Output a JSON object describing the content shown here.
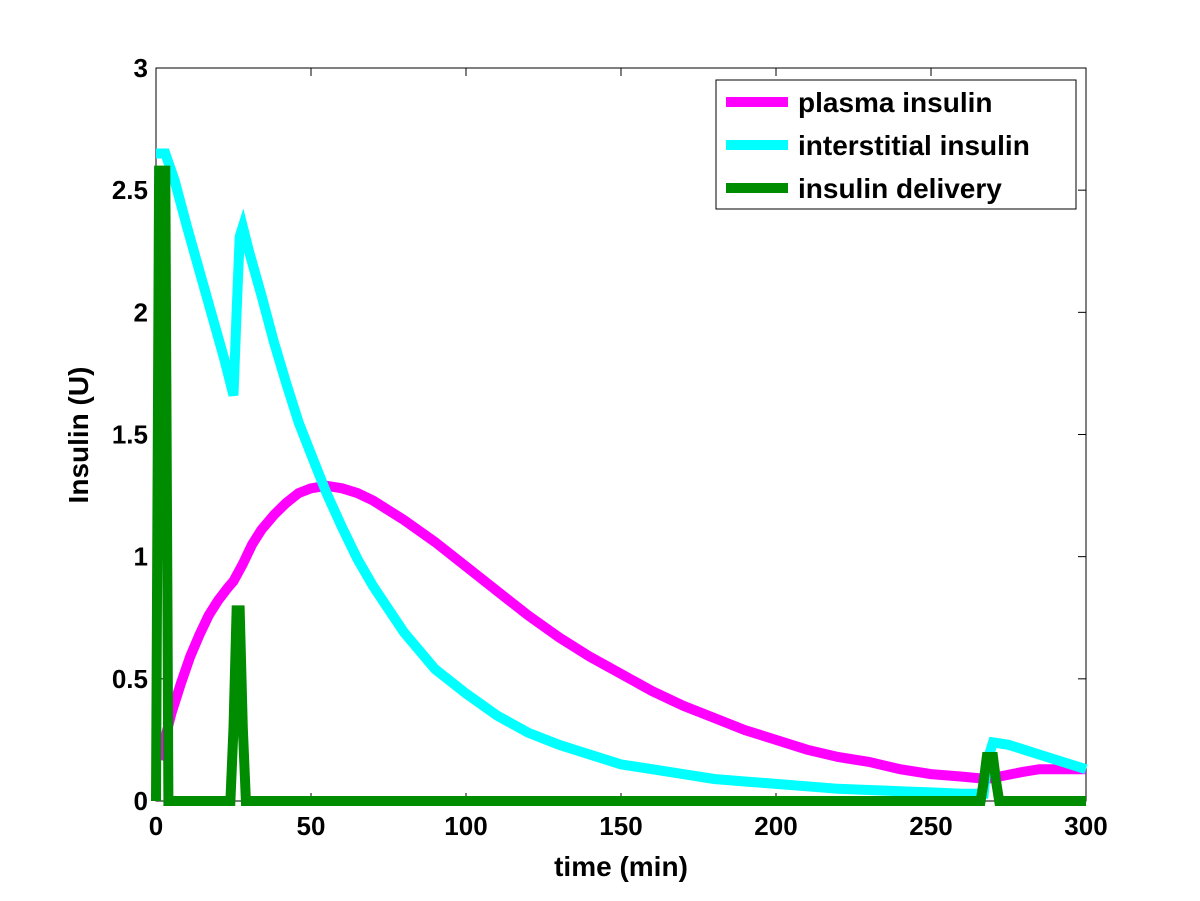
{
  "chart_data": {
    "type": "line",
    "title": "",
    "xlabel": "time (min)",
    "ylabel": "Insulin (U)",
    "xlim": [
      0,
      300
    ],
    "ylim": [
      0,
      3
    ],
    "x_ticks": [
      "0",
      "50",
      "100",
      "150",
      "200",
      "250",
      "300"
    ],
    "y_ticks": [
      "0",
      "0.5",
      "1",
      "1.5",
      "2",
      "2.5",
      "3"
    ],
    "grid": false,
    "legend_position": "top-right",
    "series": [
      {
        "name": "plasma insulin",
        "color": "#ff00ff",
        "x": [
          1,
          3,
          5,
          8,
          11,
          14,
          17,
          20,
          23,
          25,
          28,
          31,
          34,
          38,
          42,
          46,
          50,
          55,
          60,
          65,
          70,
          80,
          90,
          100,
          110,
          120,
          130,
          140,
          150,
          160,
          170,
          180,
          190,
          200,
          210,
          220,
          230,
          240,
          250,
          260,
          268,
          272,
          276,
          280,
          285,
          290,
          295,
          300
        ],
        "y": [
          0.17,
          0.26,
          0.36,
          0.48,
          0.59,
          0.68,
          0.76,
          0.82,
          0.87,
          0.9,
          0.97,
          1.05,
          1.11,
          1.17,
          1.22,
          1.26,
          1.28,
          1.29,
          1.28,
          1.26,
          1.23,
          1.15,
          1.06,
          0.96,
          0.86,
          0.76,
          0.67,
          0.59,
          0.52,
          0.45,
          0.39,
          0.34,
          0.29,
          0.25,
          0.21,
          0.18,
          0.16,
          0.13,
          0.11,
          0.1,
          0.09,
          0.1,
          0.11,
          0.12,
          0.13,
          0.13,
          0.13,
          0.13
        ]
      },
      {
        "name": "interstitial insulin",
        "color": "#00ffff",
        "x": [
          0,
          3,
          6,
          10,
          14,
          18,
          22,
          25,
          26,
          27,
          28,
          30,
          34,
          38,
          42,
          46,
          50,
          55,
          60,
          65,
          70,
          80,
          90,
          100,
          110,
          120,
          130,
          140,
          150,
          160,
          170,
          180,
          190,
          200,
          210,
          220,
          230,
          240,
          250,
          260,
          267,
          268,
          270,
          275,
          280,
          285,
          290,
          295,
          300
        ],
        "y": [
          2.65,
          2.65,
          2.54,
          2.35,
          2.17,
          1.99,
          1.81,
          1.66,
          2.0,
          2.31,
          2.35,
          2.25,
          2.07,
          1.88,
          1.71,
          1.55,
          1.42,
          1.26,
          1.12,
          0.99,
          0.88,
          0.69,
          0.54,
          0.44,
          0.35,
          0.28,
          0.23,
          0.19,
          0.15,
          0.13,
          0.11,
          0.09,
          0.08,
          0.07,
          0.06,
          0.05,
          0.045,
          0.04,
          0.035,
          0.03,
          0.03,
          0.16,
          0.24,
          0.23,
          0.21,
          0.19,
          0.17,
          0.15,
          0.13
        ]
      },
      {
        "name": "insulin delivery",
        "color": "#008c00",
        "x": [
          0,
          1,
          2,
          3,
          4,
          5,
          24,
          25,
          26,
          27,
          28,
          29,
          30,
          266,
          267,
          268,
          269,
          270,
          271,
          272,
          300
        ],
        "y": [
          0,
          2.58,
          2.58,
          2.58,
          0,
          0,
          0,
          0.3,
          0.78,
          0.78,
          0.3,
          0,
          0,
          0,
          0.08,
          0.18,
          0.18,
          0.18,
          0.08,
          0,
          0
        ]
      }
    ]
  }
}
